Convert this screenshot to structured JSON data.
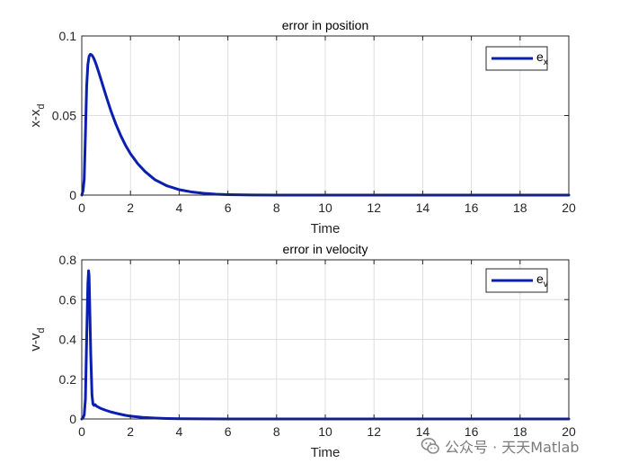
{
  "chart_data": [
    {
      "type": "line",
      "title": "error in position",
      "xlabel": "Time",
      "ylabel": "x-x",
      "ylabel_sub": "d",
      "xlim": [
        0,
        20
      ],
      "ylim": [
        0,
        0.1
      ],
      "xticks": [
        0,
        2,
        4,
        6,
        8,
        10,
        12,
        14,
        16,
        18,
        20
      ],
      "yticks": [
        0,
        0.05,
        0.1
      ],
      "ytick_labels": [
        "0",
        "0.05",
        "0.1"
      ],
      "grid": true,
      "legend_position": "top-right",
      "line_color": "#0a1fb0",
      "series": [
        {
          "legend": "e",
          "legend_sub": "x",
          "x": [
            0,
            0.05,
            0.1,
            0.15,
            0.2,
            0.25,
            0.3,
            0.35,
            0.4,
            0.45,
            0.5,
            0.55,
            0.6,
            0.7,
            0.8,
            0.9,
            1.0,
            1.2,
            1.4,
            1.6,
            1.8,
            2.0,
            2.3,
            2.6,
            3.0,
            3.5,
            4.0,
            4.5,
            5.0,
            5.5,
            6.0,
            7.0,
            8.0,
            10.0,
            12.0,
            14.0,
            16.0,
            18.0,
            20.0
          ],
          "y": [
            0,
            0.0025,
            0.01,
            0.038,
            0.068,
            0.082,
            0.0872,
            0.0885,
            0.0882,
            0.0872,
            0.0857,
            0.0838,
            0.0817,
            0.077,
            0.0721,
            0.0671,
            0.0622,
            0.0528,
            0.0446,
            0.0374,
            0.0312,
            0.026,
            0.0197,
            0.0148,
            0.0097,
            0.0058,
            0.0034,
            0.002,
            0.0011,
            0.0006,
            0.0003,
            0.0001,
            3e-05,
            0,
            0,
            0,
            0,
            0,
            0
          ]
        }
      ]
    },
    {
      "type": "line",
      "title": "error in velocity",
      "xlabel": "Time",
      "ylabel": "v-v",
      "ylabel_sub": "d",
      "xlim": [
        0,
        20
      ],
      "ylim": [
        0,
        0.8
      ],
      "xticks": [
        0,
        2,
        4,
        6,
        8,
        10,
        12,
        14,
        16,
        18,
        20
      ],
      "yticks": [
        0,
        0.2,
        0.4,
        0.6,
        0.8
      ],
      "ytick_labels": [
        "0",
        "0.2",
        "0.4",
        "0.6",
        "0.8"
      ],
      "grid": true,
      "legend_position": "top-right",
      "line_color": "#0a1fb0",
      "series": [
        {
          "legend": "e",
          "legend_sub": "v",
          "x": [
            0,
            0.05,
            0.1,
            0.15,
            0.2,
            0.25,
            0.28,
            0.3,
            0.33,
            0.37,
            0.42,
            0.46,
            0.5,
            0.55,
            0.6,
            0.7,
            0.8,
            1.0,
            1.2,
            1.5,
            1.8,
            2.0,
            2.5,
            3.0,
            3.5,
            4.0,
            5.0,
            6.0,
            8.0,
            10.0,
            12.0,
            14.0,
            16.0,
            18.0,
            20.0
          ],
          "y": [
            0,
            0.005,
            0.02,
            0.1,
            0.4,
            0.68,
            0.745,
            0.72,
            0.55,
            0.32,
            0.12,
            0.075,
            0.068,
            0.072,
            0.065,
            0.058,
            0.052,
            0.043,
            0.035,
            0.026,
            0.018,
            0.014,
            0.008,
            0.0045,
            0.0024,
            0.0013,
            0.0004,
            0.0001,
            0,
            0,
            0,
            0,
            0,
            0,
            0
          ]
        }
      ]
    }
  ],
  "watermark": {
    "text": "公众号 · 天天Matlab",
    "icon": "wechat-icon"
  }
}
